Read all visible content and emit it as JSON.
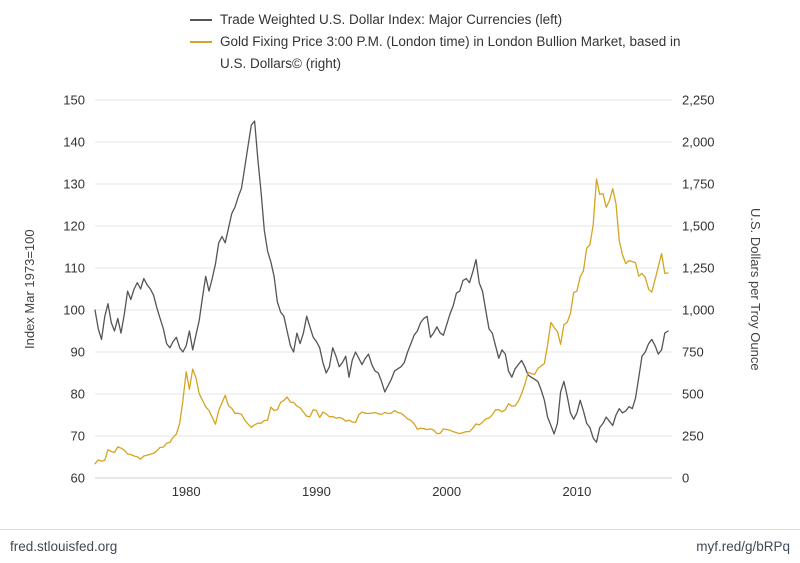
{
  "footer": {
    "left": "fred.stlouisfed.org",
    "right": "myf.red/g/bRPq"
  },
  "chart_data": {
    "type": "line",
    "title": "",
    "x_start": 1973.0,
    "x_end": 2017.3,
    "x_step": 0.25,
    "x_ticks": [
      1980,
      1990,
      2000,
      2010
    ],
    "grid": "on",
    "legend_position": "top",
    "colors": {
      "grid": "#e6e6e6",
      "axis_line": "#c7d0d9"
    },
    "left_axis": {
      "label": "Index Mar 1973=100",
      "min": 60,
      "max": 150,
      "ticks": [
        60,
        70,
        80,
        90,
        100,
        110,
        120,
        130,
        140,
        150
      ]
    },
    "right_axis": {
      "label": "U.S. Dollars per Troy Ounce",
      "min": 0,
      "max": 2250,
      "ticks": [
        0,
        250,
        500,
        750,
        1000,
        1250,
        1500,
        1750,
        2000,
        2250
      ],
      "tick_labels": [
        "0",
        "250",
        "500",
        "750",
        "1,000",
        "1,250",
        "1,500",
        "1,750",
        "2,000",
        "2,250"
      ]
    },
    "series": [
      {
        "id": "dollar-index",
        "name": "Trade Weighted U.S. Dollar Index: Major Currencies (left)",
        "axis": "left",
        "color": "#555555",
        "values": [
          100,
          95.5,
          93,
          98.5,
          101.5,
          97,
          95,
          98,
          94.5,
          99,
          104.5,
          102.5,
          105,
          106.5,
          105,
          107.5,
          106,
          105,
          103.5,
          100.5,
          98,
          95.5,
          92,
          91,
          92.5,
          93.5,
          91,
          90,
          91.5,
          95,
          90.5,
          94,
          97.5,
          103,
          108,
          104.5,
          107.5,
          111,
          116,
          117.5,
          116,
          119.5,
          123,
          124.5,
          127,
          129,
          134,
          139,
          144,
          145,
          136,
          128,
          119,
          114,
          111.5,
          108,
          102,
          99.5,
          98.5,
          95,
          91.5,
          90,
          94.5,
          92,
          94.5,
          98.5,
          96,
          93.5,
          92.5,
          91,
          87.5,
          85,
          86.5,
          91,
          89,
          86.5,
          87.5,
          89,
          84,
          88,
          90,
          88.5,
          87,
          88.5,
          89.5,
          87,
          85.5,
          85,
          83,
          80.5,
          82,
          83.5,
          85.5,
          86,
          86.5,
          87.5,
          90,
          92,
          94,
          95,
          97,
          98,
          98.5,
          93.5,
          94.5,
          96,
          94.5,
          94,
          96.5,
          99,
          101,
          104,
          104.5,
          107,
          107.5,
          106.5,
          109,
          112,
          106.5,
          104.5,
          100,
          95.5,
          94.5,
          91.5,
          88.5,
          90.5,
          89.5,
          85.5,
          84,
          86,
          87,
          88,
          86.5,
          84.5,
          84,
          83.5,
          83,
          81,
          78.5,
          74.5,
          72.5,
          70.5,
          73,
          80.5,
          83,
          79.5,
          75.5,
          74,
          75.5,
          78.5,
          76,
          73,
          72,
          69.5,
          68.5,
          72,
          73,
          74.5,
          73.5,
          72.5,
          75,
          76.5,
          75.5,
          76,
          77,
          76.5,
          79,
          84,
          89,
          90,
          92,
          93,
          91.5,
          89.5,
          90.5,
          94.5,
          95
        ]
      },
      {
        "id": "gold-price",
        "name": "Gold Fixing Price 3:00 P.M. (London time) in London Bullion Market, based in U.S. Dollars© (right)",
        "axis": "right",
        "color": "#d5a423",
        "values": [
          85,
          108,
          100,
          106,
          168,
          158,
          152,
          186,
          178,
          166,
          143,
          140,
          131,
          126,
          112,
          131,
          136,
          141,
          147,
          162,
          182,
          184,
          208,
          212,
          242,
          262,
          325,
          462,
          632,
          528,
          648,
          598,
          502,
          462,
          424,
          402,
          362,
          320,
          402,
          448,
          492,
          430,
          414,
          384,
          386,
          378,
          344,
          322,
          302,
          316,
          326,
          326,
          342,
          344,
          422,
          402,
          406,
          450,
          462,
          482,
          452,
          450,
          428,
          418,
          392,
          368,
          364,
          406,
          402,
          360,
          392,
          382,
          364,
          366,
          356,
          360,
          354,
          338,
          344,
          334,
          330,
          376,
          392,
          386,
          384,
          386,
          390,
          382,
          378,
          390,
          384,
          386,
          402,
          390,
          386,
          370,
          352,
          342,
          324,
          290,
          296,
          294,
          288,
          292,
          286,
          264,
          266,
          292,
          288,
          284,
          276,
          270,
          264,
          270,
          276,
          276,
          296,
          322,
          316,
          332,
          352,
          356,
          376,
          406,
          406,
          394,
          406,
          442,
          428,
          430,
          456,
          502,
          556,
          628,
          622,
          616,
          652,
          666,
          682,
          792,
          926,
          896,
          872,
          796,
          912,
          926,
          978,
          1104,
          1112,
          1198,
          1232,
          1368,
          1388,
          1508,
          1780,
          1688,
          1692,
          1612,
          1652,
          1722,
          1632,
          1416,
          1328,
          1276,
          1294,
          1288,
          1282,
          1202,
          1218,
          1192,
          1124,
          1106,
          1182,
          1258,
          1336,
          1218,
          1220
        ]
      }
    ]
  }
}
